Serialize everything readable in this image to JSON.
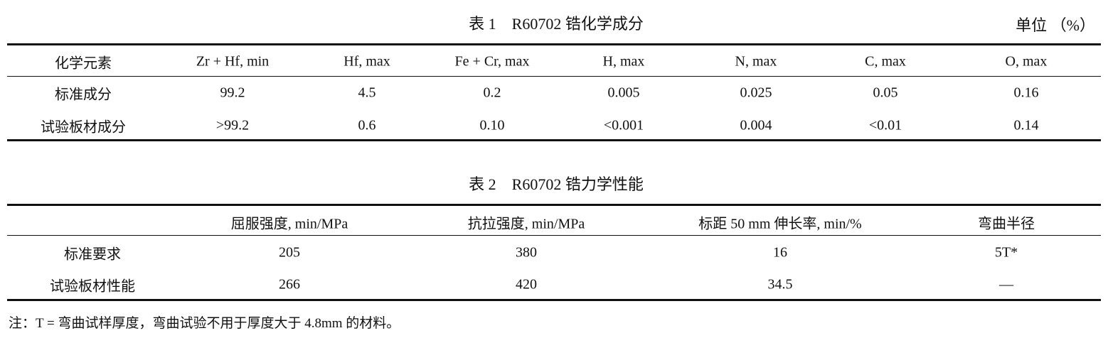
{
  "table1": {
    "title": "表 1　R60702 锆化学成分",
    "unit": "单位 （%）",
    "headers": [
      "化学元素",
      "Zr + Hf, min",
      "Hf, max",
      "Fe + Cr, max",
      "H, max",
      "N, max",
      "C, max",
      "O, max"
    ],
    "rows": [
      [
        "标准成分",
        "99.2",
        "4.5",
        "0.2",
        "0.005",
        "0.025",
        "0.05",
        "0.16"
      ],
      [
        "试验板材成分",
        ">99.2",
        "0.6",
        "0.10",
        "<0.001",
        "0.004",
        "<0.01",
        "0.14"
      ]
    ]
  },
  "table2": {
    "title": "表 2　R60702 锆力学性能",
    "headers": [
      "",
      "屈服强度, min/MPa",
      "抗拉强度, min/MPa",
      "标距 50 mm 伸长率, min/%",
      "弯曲半径"
    ],
    "rows": [
      [
        "标准要求",
        "205",
        "380",
        "16",
        "5T*"
      ],
      [
        "试验板材性能",
        "266",
        "420",
        "34.5",
        "—"
      ]
    ]
  },
  "note": "注：T = 弯曲试样厚度，弯曲试验不用于厚度大于 4.8mm 的材料。"
}
